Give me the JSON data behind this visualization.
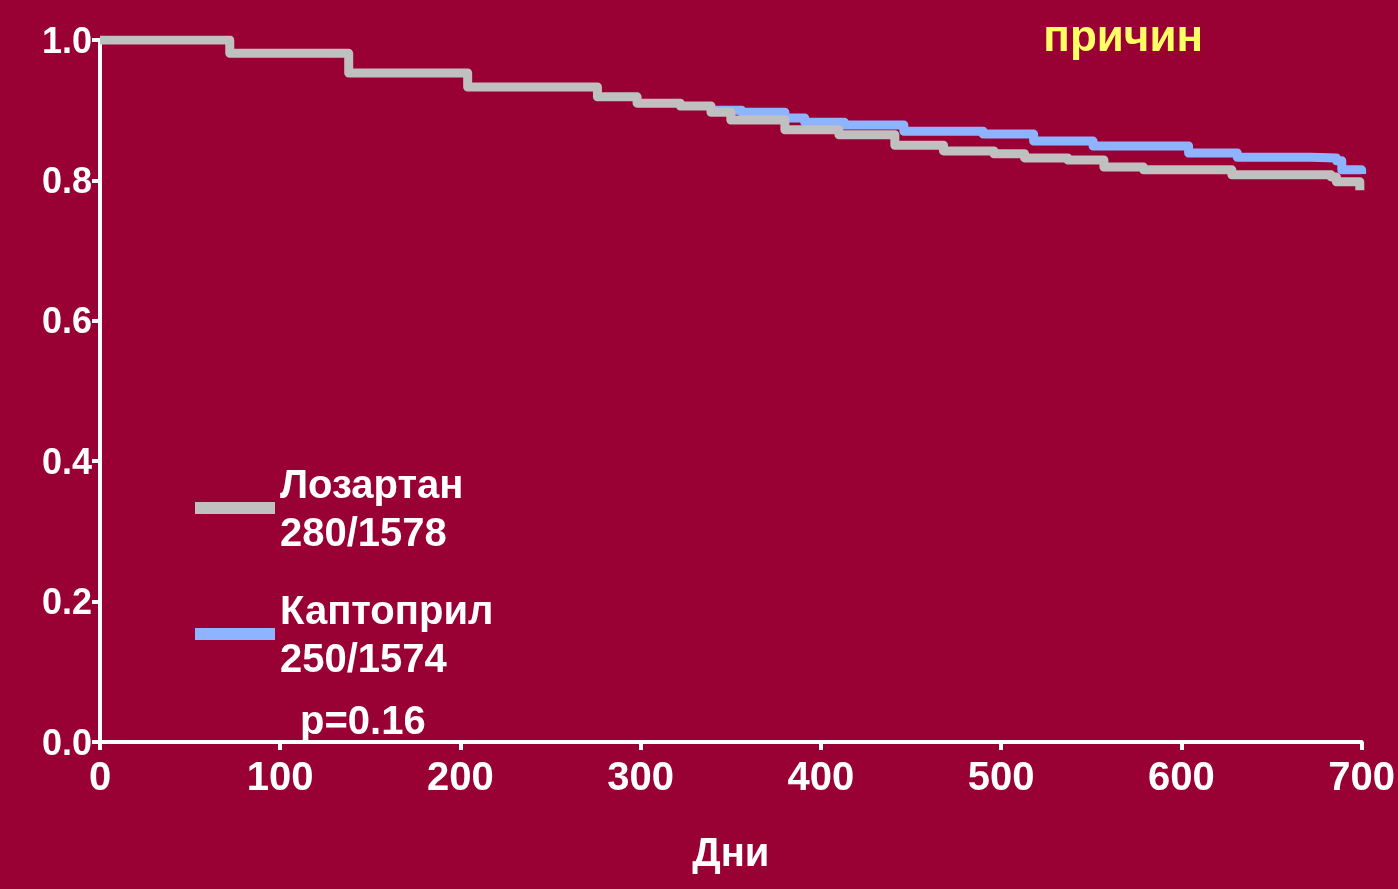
{
  "chart_data": {
    "type": "step",
    "title": "причин",
    "xlabel": "Дни",
    "xlim": [
      0,
      700
    ],
    "xticks": [
      0,
      100,
      200,
      300,
      400,
      500,
      600,
      700
    ],
    "ylim": [
      0,
      1
    ],
    "yticks": [
      {
        "value": 0,
        "label": "0.0"
      },
      {
        "value": 0.2,
        "label": "0.2"
      },
      {
        "value": 0.4,
        "label": "0.4"
      },
      {
        "value": 0.6,
        "label": "0.6"
      },
      {
        "value": 0.8,
        "label": "0.8"
      },
      {
        "value": 1,
        "label": "1.0"
      }
    ],
    "series": [
      {
        "name": "Лозартан 280/1578",
        "color": "#c0c0c0",
        "x": [
          0,
          72,
          138,
          204,
          276,
          298,
          322,
          339,
          350,
          380,
          410,
          441,
          468,
          496,
          513,
          537,
          557,
          579,
          606,
          628,
          683,
          686,
          699
        ],
        "values": [
          1.0,
          0.981,
          0.953,
          0.933,
          0.919,
          0.91,
          0.906,
          0.897,
          0.886,
          0.872,
          0.865,
          0.85,
          0.842,
          0.838,
          0.832,
          0.829,
          0.819,
          0.815,
          0.815,
          0.808,
          0.805,
          0.798,
          0.786
        ]
      },
      {
        "name": "Каптоприл 250/1574",
        "color": "#8fb4ff",
        "x": [
          339,
          356,
          380,
          391,
          413,
          446,
          490,
          518,
          551,
          604,
          631,
          672,
          686,
          689,
          700
        ],
        "values": [
          0.9,
          0.897,
          0.889,
          0.883,
          0.879,
          0.87,
          0.866,
          0.856,
          0.849,
          0.839,
          0.833,
          0.832,
          0.828,
          0.815,
          0.809
        ]
      }
    ],
    "legend": "left",
    "grid": false,
    "marker": "none",
    "line_style": "solid",
    "annotations": [
      "p=0.16"
    ]
  }
}
